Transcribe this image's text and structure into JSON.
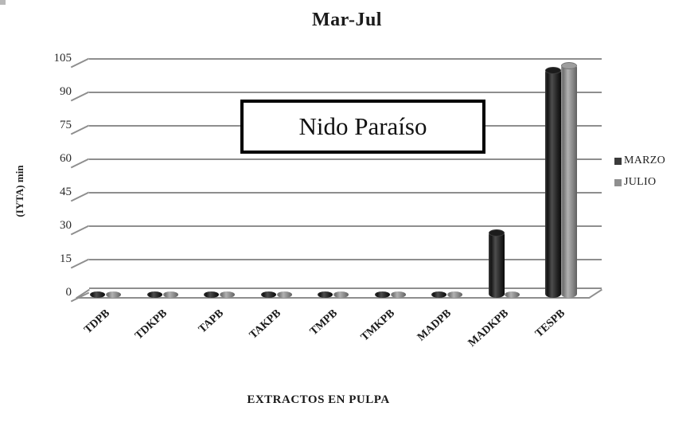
{
  "title": "Mar-Jul",
  "annotation_box": {
    "text": "Nido Paraíso"
  },
  "chart_data": {
    "type": "bar",
    "style": "3d-cylinder",
    "title": "Mar-Jul",
    "xlabel": "EXTRACTOS EN PULPA",
    "ylabel": "(IYTA) min",
    "categories": [
      "TDPB",
      "TDKPB",
      "TAPB",
      "TAKPB",
      "TMPB",
      "TMKPB",
      "MADPB",
      "MADKPB",
      "TESPB"
    ],
    "series": [
      {
        "name": "MARZO",
        "color": "#3b3b3b",
        "values": [
          0.5,
          0.5,
          0.5,
          0.5,
          0.5,
          0.5,
          0.5,
          30,
          103
        ]
      },
      {
        "name": "JULIO",
        "color": "#8f8f8f",
        "values": [
          0.5,
          0.5,
          0.5,
          0.5,
          0.5,
          0.5,
          0.5,
          0.5,
          105
        ]
      }
    ],
    "ylim": [
      0,
      105
    ],
    "yticks": [
      0,
      15,
      30,
      45,
      60,
      75,
      90,
      105
    ],
    "grid": true,
    "gridline_color": "#8e8e8e",
    "legend_position": "right",
    "annotation": "Nido Paraíso"
  }
}
